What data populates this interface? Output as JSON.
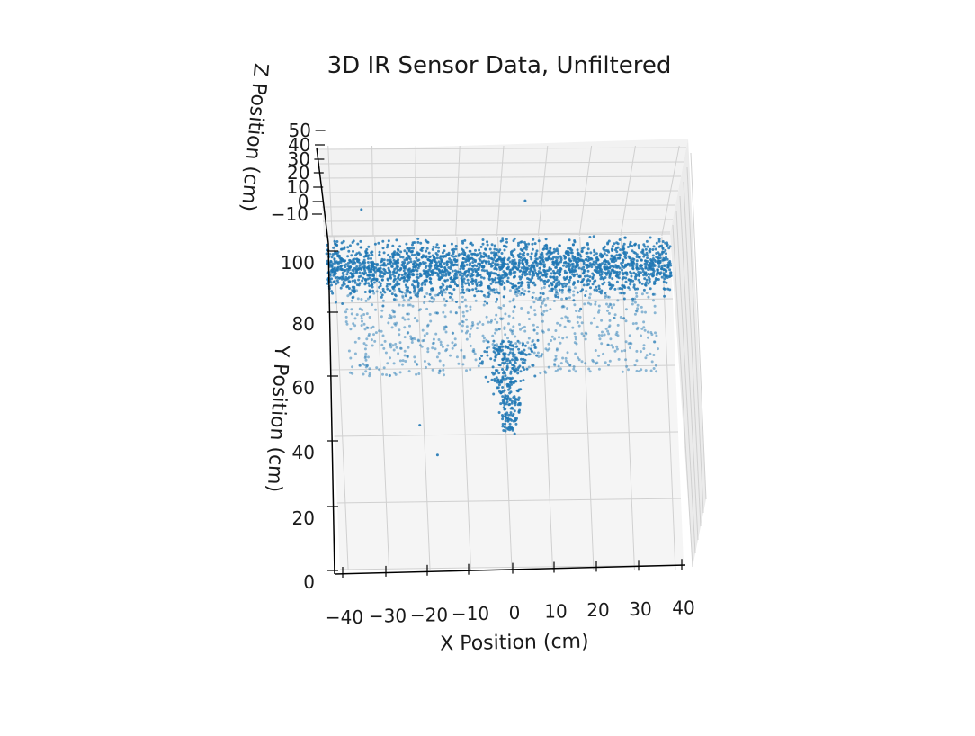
{
  "chart_data": {
    "type": "scatter",
    "projection": "3d",
    "title": "3D IR Sensor Data, Unfiltered",
    "xlabel": "X Position (cm)",
    "ylabel": "Y Position (cm)",
    "zlabel": "Z Position (cm)",
    "xlim": [
      -42,
      42
    ],
    "ylim": [
      0,
      100
    ],
    "zlim": [
      -10,
      50
    ],
    "x_ticks": [
      "−40",
      "−30",
      "−20",
      "−10",
      "0",
      "10",
      "20",
      "30",
      "40"
    ],
    "y_ticks": [
      "0",
      "20",
      "40",
      "60",
      "80",
      "100"
    ],
    "z_ticks": [
      "−10",
      "0",
      "10",
      "20",
      "30",
      "40",
      "50"
    ],
    "grid": true,
    "series_color": "#1f77b4",
    "scan_clusters": [
      {
        "label": "back wall band",
        "x_range": [
          -42,
          42
        ],
        "y_range": [
          82,
          98
        ],
        "points_approx": 2200
      },
      {
        "label": "scattered returns",
        "x_range": [
          -38,
          38
        ],
        "y_range": [
          58,
          84
        ],
        "points_approx": 700
      },
      {
        "label": "object cone",
        "x_range": [
          -3,
          5
        ],
        "y_range": [
          40,
          68
        ],
        "points_approx": 300
      }
    ],
    "outliers": [
      {
        "x": -21,
        "y": 43
      },
      {
        "x": -17,
        "y": 34
      },
      {
        "x": -33,
        "y": 108
      },
      {
        "x": 7,
        "y": 110
      }
    ]
  }
}
